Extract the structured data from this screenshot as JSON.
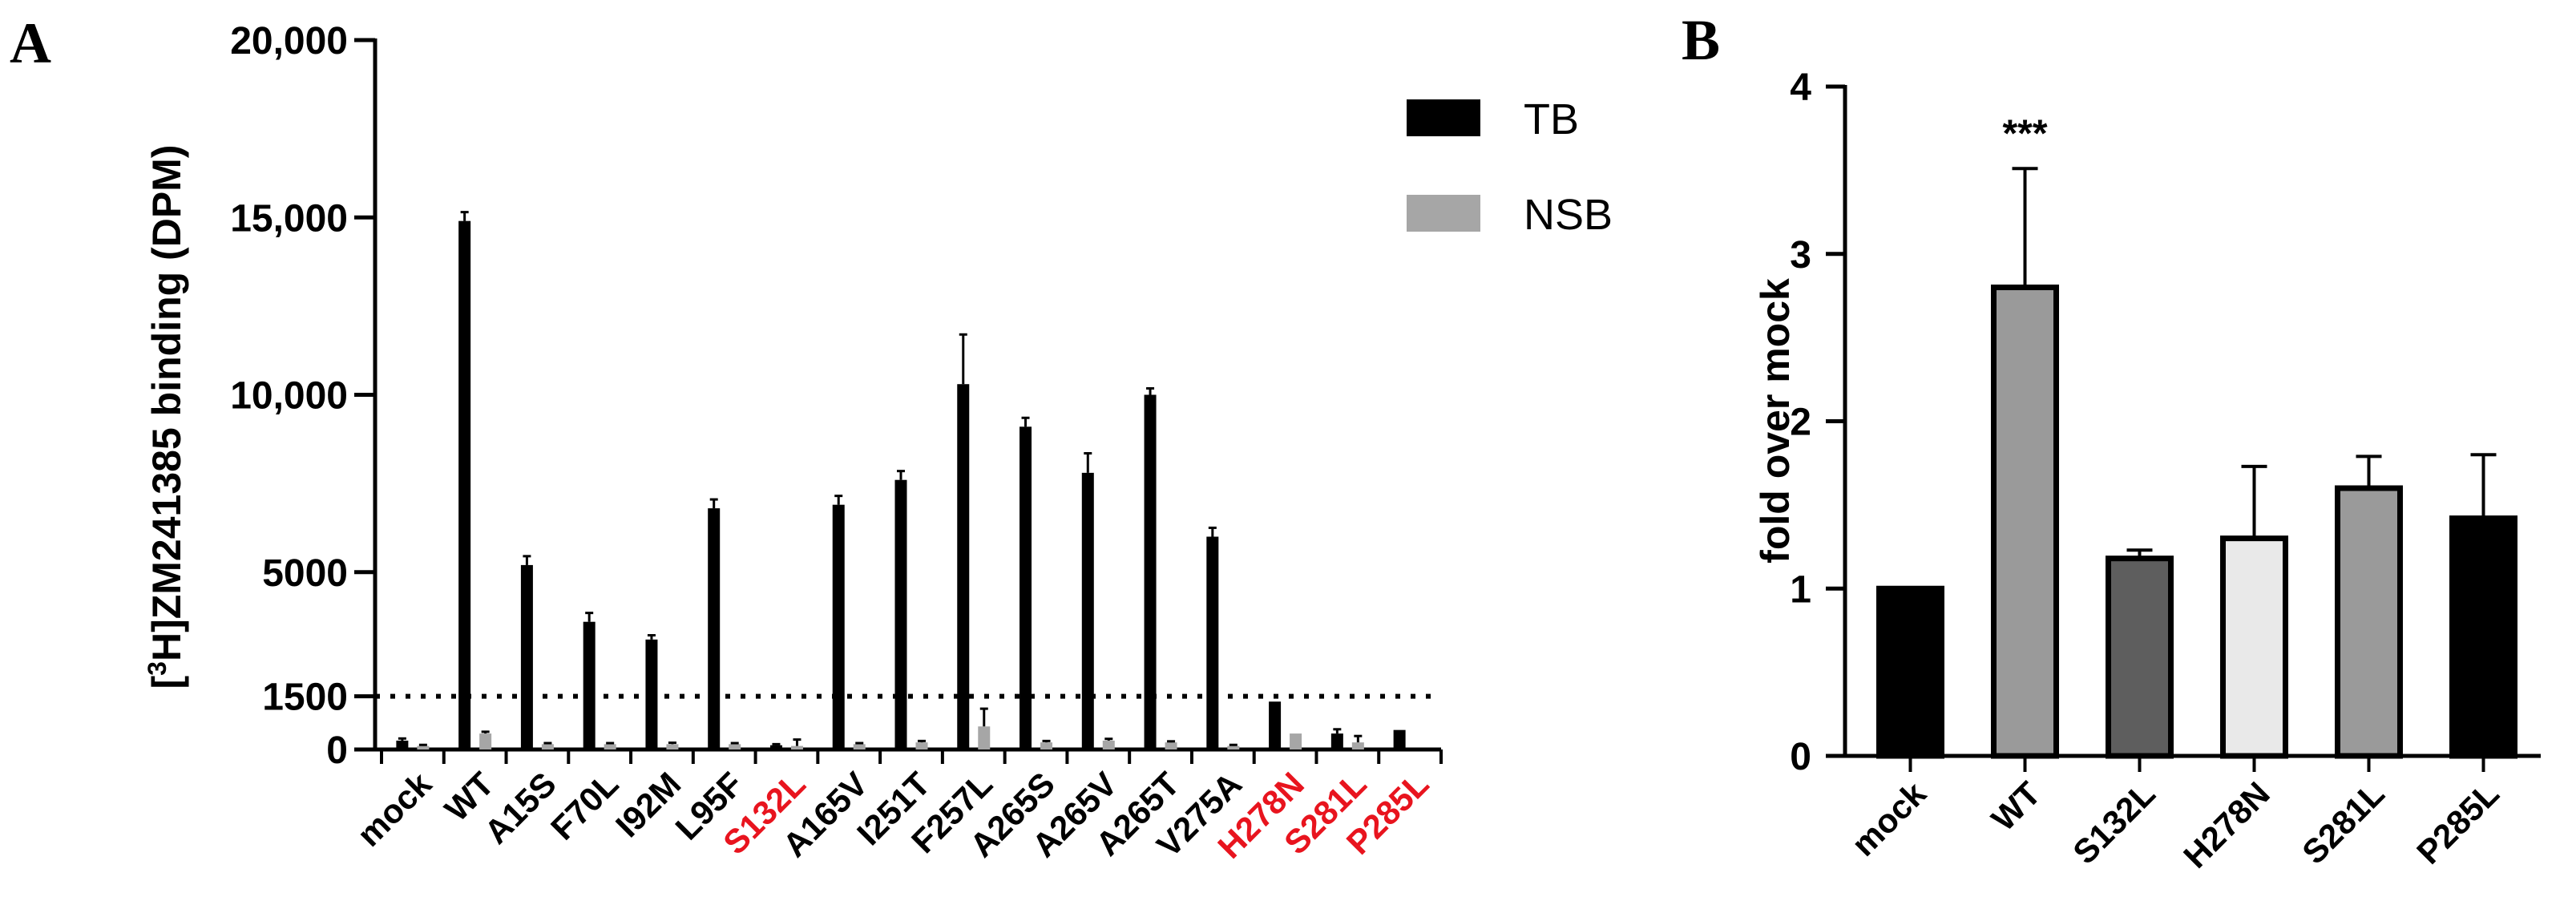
{
  "panel_a_letter": "A",
  "panel_b_letter": "B",
  "chart_data": [
    {
      "type": "bar",
      "panel": "A",
      "title": "",
      "ylabel": "[³H]ZM241385 binding (DPM)",
      "ylabel_parts": {
        "prefix": "[",
        "sup": "3",
        "suffix": "H]ZM241385 binding (DPM)"
      },
      "xlabel": "",
      "ylim": [
        0,
        20000
      ],
      "yticks": [
        {
          "value": 0,
          "label": "0"
        },
        {
          "value": 1500,
          "label": "1500"
        },
        {
          "value": 5000,
          "label": "5000"
        },
        {
          "value": 10000,
          "label": "10,000"
        },
        {
          "value": 15000,
          "label": "15,000"
        },
        {
          "value": 20000,
          "label": "20,000"
        }
      ],
      "threshold": 1500,
      "threshold_style": "dotted",
      "legend": {
        "position": "top-right",
        "entries": [
          {
            "name": "TB",
            "color": "#000000"
          },
          {
            "name": "NSB",
            "color": "#a6a6a6"
          }
        ]
      },
      "categories": [
        "mock",
        "WT",
        "A15S",
        "F70L",
        "I92M",
        "L95F",
        "S132L",
        "A165V",
        "I251T",
        "F257L",
        "A265S",
        "A265V",
        "A265T",
        "V275A",
        "H278N",
        "S281L",
        "P285L"
      ],
      "highlighted_categories": [
        "S132L",
        "H278N",
        "S281L",
        "P285L"
      ],
      "highlight_color": "#e8141e",
      "series": [
        {
          "name": "TB",
          "color": "#000000",
          "values": [
            250,
            14900,
            5200,
            3600,
            3100,
            6800,
            120,
            6900,
            7600,
            10300,
            9100,
            7800,
            10000,
            6000,
            1350,
            450,
            550
          ],
          "errors": [
            60,
            250,
            250,
            250,
            120,
            250,
            30,
            250,
            250,
            1400,
            250,
            550,
            180,
            250,
            0,
            120,
            0
          ]
        },
        {
          "name": "NSB",
          "color": "#a6a6a6",
          "values": [
            100,
            450,
            150,
            150,
            150,
            150,
            100,
            150,
            200,
            650,
            200,
            250,
            200,
            100,
            450,
            200,
            0
          ],
          "errors": [
            30,
            50,
            30,
            30,
            40,
            30,
            180,
            30,
            40,
            500,
            40,
            50,
            30,
            30,
            0,
            180,
            0
          ]
        }
      ]
    },
    {
      "type": "bar",
      "panel": "B",
      "title": "",
      "ylabel": "fold over mock",
      "xlabel": "",
      "ylim": [
        0,
        4
      ],
      "yticks": [
        {
          "value": 0,
          "label": "0"
        },
        {
          "value": 1,
          "label": "1"
        },
        {
          "value": 2,
          "label": "2"
        },
        {
          "value": 3,
          "label": "3"
        },
        {
          "value": 4,
          "label": "4"
        }
      ],
      "categories": [
        "mock",
        "WT",
        "S132L",
        "H278N",
        "S281L",
        "P285L"
      ],
      "values": [
        1.0,
        2.8,
        1.18,
        1.3,
        1.6,
        1.42
      ],
      "errors": [
        0,
        0.71,
        0.05,
        0.43,
        0.19,
        0.38
      ],
      "fill_colors": [
        "#000000",
        "#9a9a9a",
        "#5e5e5e",
        "#e9e9e9",
        "#9a9a9a",
        "#000000"
      ],
      "annotations": [
        {
          "category": "WT",
          "text": "***"
        }
      ]
    }
  ]
}
